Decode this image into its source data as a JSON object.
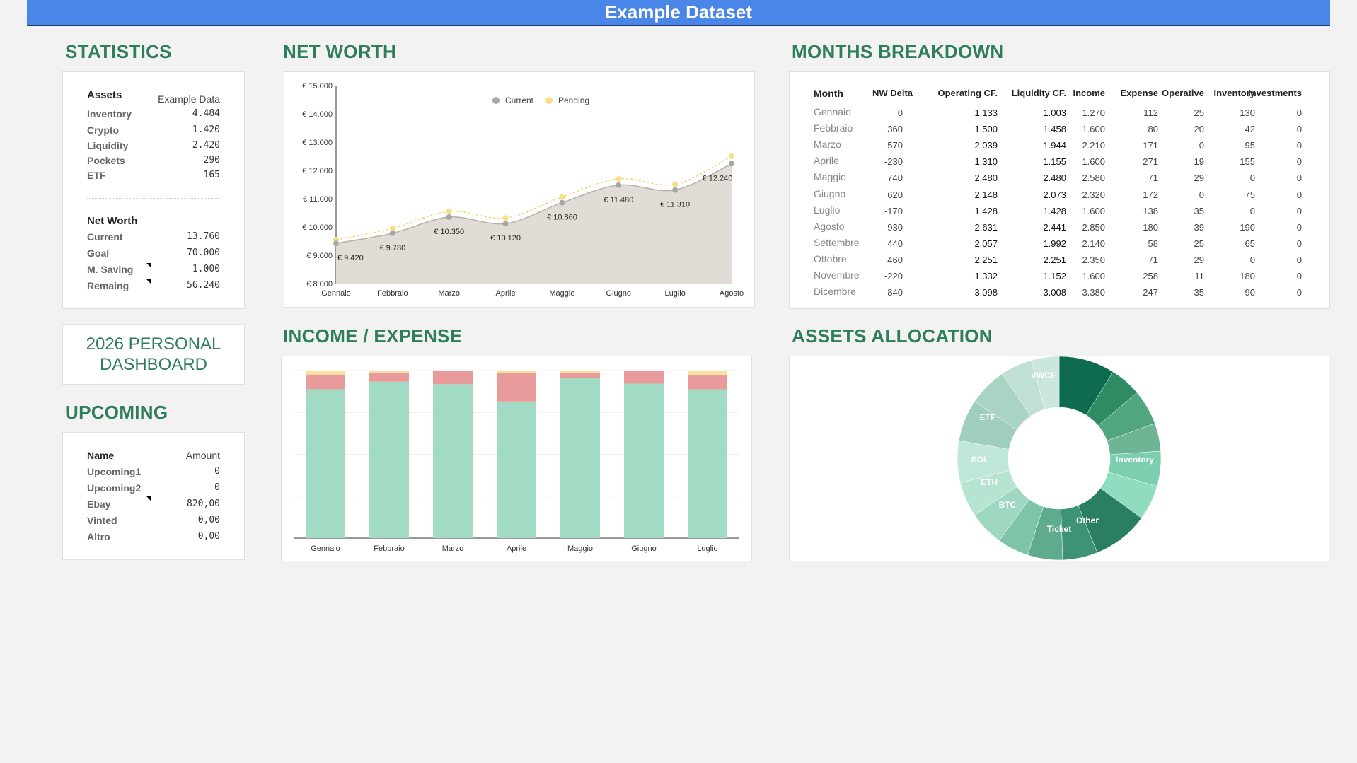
{
  "banner": {
    "title": "Example Dataset"
  },
  "sections": {
    "statistics": "STATISTICS",
    "net_worth": "NET WORTH",
    "months": "MONTHS BREAKDOWN",
    "income_expense": "INCOME / EXPENSE",
    "allocation": "ASSETS ALLOCATION",
    "upcoming": "UPCOMING"
  },
  "statistics": {
    "assets_label": "Assets",
    "data_label": "Example Data",
    "assets": [
      {
        "name": "Inventory",
        "value": "4.484"
      },
      {
        "name": "Crypto",
        "value": "1.420"
      },
      {
        "name": "Liquidity",
        "value": "2.420"
      },
      {
        "name": "Pockets",
        "value": "290"
      },
      {
        "name": "ETF",
        "value": "165"
      }
    ],
    "networth_label": "Net Worth",
    "networth": [
      {
        "name": "Current",
        "value": "13.760"
      },
      {
        "name": "Goal",
        "value": "70.000"
      },
      {
        "name": "M. Saving",
        "value": "1.000"
      },
      {
        "name": "Remaing",
        "value": "56.240"
      }
    ]
  },
  "dashboard": {
    "line1": "2026 PERSONAL",
    "line2": "DASHBOARD"
  },
  "upcoming": {
    "name_label": "Name",
    "amount_label": "Amount",
    "items": [
      {
        "name": "Upcoming1",
        "amount": "0"
      },
      {
        "name": "Upcoming2",
        "amount": "0"
      },
      {
        "name": "Ebay",
        "amount": "820,00"
      },
      {
        "name": "Vinted",
        "amount": "0,00"
      },
      {
        "name": "Altro",
        "amount": "0,00"
      }
    ]
  },
  "months_table": {
    "headers": [
      "Month",
      "NW Delta",
      "Operating CF.",
      "Liquidity CF.",
      "Income",
      "Expense",
      "Operative",
      "Inventory",
      "Investments"
    ],
    "rows": [
      [
        "Gennaio",
        "0",
        "1.133",
        "1.003",
        "1.270",
        "112",
        "25",
        "130",
        "0"
      ],
      [
        "Febbraio",
        "360",
        "1.500",
        "1.458",
        "1.600",
        "80",
        "20",
        "42",
        "0"
      ],
      [
        "Marzo",
        "570",
        "2.039",
        "1.944",
        "2.210",
        "171",
        "0",
        "95",
        "0"
      ],
      [
        "Aprile",
        "-230",
        "1.310",
        "1.155",
        "1.600",
        "271",
        "19",
        "155",
        "0"
      ],
      [
        "Maggio",
        "740",
        "2.480",
        "2.480",
        "2.580",
        "71",
        "29",
        "0",
        "0"
      ],
      [
        "Giugno",
        "620",
        "2.148",
        "2.073",
        "2.320",
        "172",
        "0",
        "75",
        "0"
      ],
      [
        "Luglio",
        "-170",
        "1.428",
        "1.428",
        "1.600",
        "138",
        "35",
        "0",
        "0"
      ],
      [
        "Agosto",
        "930",
        "2.631",
        "2.441",
        "2.850",
        "180",
        "39",
        "190",
        "0"
      ],
      [
        "Settembre",
        "440",
        "2.057",
        "1.992",
        "2.140",
        "58",
        "25",
        "65",
        "0"
      ],
      [
        "Ottobre",
        "460",
        "2.251",
        "2.251",
        "2.350",
        "71",
        "29",
        "0",
        "0"
      ],
      [
        "Novembre",
        "-220",
        "1.332",
        "1.152",
        "1.600",
        "258",
        "11",
        "180",
        "0"
      ],
      [
        "Dicembre",
        "840",
        "3.098",
        "3.008",
        "3.380",
        "247",
        "35",
        "90",
        "0"
      ]
    ]
  },
  "chart_data": [
    {
      "type": "area",
      "categories": [
        "Gennaio",
        "Febbraio",
        "Marzo",
        "Aprile",
        "Maggio",
        "Giugno",
        "Luglio",
        "Agosto"
      ],
      "series": [
        {
          "name": "Current",
          "values": [
            9420,
            9780,
            10350,
            10120,
            10860,
            11480,
            11310,
            12240
          ],
          "color": "#b7b7b7"
        },
        {
          "name": "Pending",
          "values": [
            9550,
            9950,
            10550,
            10320,
            11060,
            11700,
            11510,
            12500
          ],
          "color": "#f6d76b"
        }
      ],
      "data_labels": [
        "€ 9.420",
        "€ 9.780",
        "€ 10.350",
        "€ 10.120",
        "€ 10.860",
        "€ 11.480",
        "€ 11.310",
        "€ 12.240"
      ],
      "yticks": [
        "€ 8.000",
        "€ 9.000",
        "€ 10.000",
        "€ 11.000",
        "€ 12.000",
        "€ 13.000",
        "€ 14.000",
        "€ 15.000"
      ],
      "ylim": [
        8000,
        15000
      ],
      "legend": "top",
      "grid": false
    },
    {
      "type": "bar",
      "stacked": true,
      "categories": [
        "Gennaio",
        "Febbraio",
        "Marzo",
        "Aprile",
        "Maggio",
        "Giugno",
        "Luglio"
      ],
      "series": [
        {
          "values": [
            1133,
            1500,
            2039,
            1310,
            2480,
            2148,
            1428
          ],
          "color": "#a2dbc3"
        },
        {
          "values": [
            112,
            80,
            171,
            271,
            71,
            172,
            138
          ],
          "color": "#e99a9a"
        },
        {
          "values": [
            25,
            20,
            0,
            19,
            29,
            0,
            35
          ],
          "color": "#f8e3a0"
        }
      ],
      "grid": true
    },
    {
      "type": "pie",
      "donut": true,
      "labels": [
        "VWCE",
        "ETF",
        "SOL",
        "ETH",
        "BTC",
        "Ticket",
        "Other",
        "Inventory"
      ],
      "slice_values": [
        8,
        4.5,
        5,
        4,
        5,
        5,
        8,
        5,
        5,
        4.5,
        5,
        5,
        6,
        6,
        5.5,
        4.5,
        4
      ],
      "colors": [
        "#0f6b4f",
        "#2e8b63",
        "#4fa67f",
        "#6db595",
        "#7ccfae",
        "#8fdcbf",
        "#2a7f63",
        "#3e9276",
        "#5fab8e",
        "#7ec4a8",
        "#9ed8c1",
        "#b5e4d1",
        "#c0e7d8",
        "#9fcfbc",
        "#a9d3c2",
        "#bfe0d3",
        "#cbe6dc"
      ]
    }
  ]
}
